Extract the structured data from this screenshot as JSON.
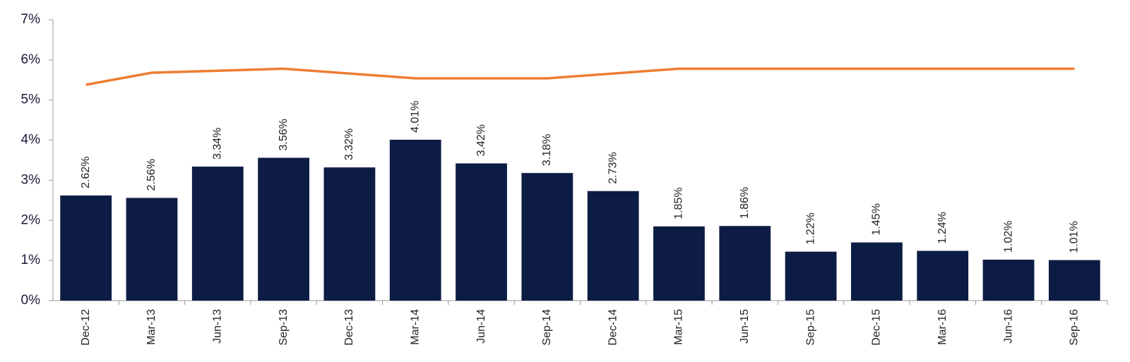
{
  "chart_data": {
    "type": "bar",
    "categories": [
      "Dec-12",
      "Mar-13",
      "Jun-13",
      "Sep-13",
      "Dec-13",
      "Mar-14",
      "Jun-14",
      "Sep-14",
      "Dec-14",
      "Mar-15",
      "Jun-15",
      "Sep-15",
      "Dec-15",
      "Mar-16",
      "Jun-16",
      "Sep-16"
    ],
    "series": [
      {
        "type": "bar",
        "color": "#0c1c44",
        "values": [
          2.62,
          2.56,
          3.34,
          3.56,
          3.32,
          4.01,
          3.42,
          3.18,
          2.73,
          1.85,
          1.86,
          1.22,
          1.45,
          1.24,
          1.02,
          1.01
        ],
        "value_labels": [
          "2.62%",
          "2.56%",
          "3.34%",
          "3.56%",
          "3.32%",
          "4.01%",
          "3.42%",
          "3.18%",
          "2.73%",
          "1.85%",
          "1.86%",
          "1.22%",
          "1.45%",
          "1.24%",
          "1.02%",
          "1.01%"
        ]
      },
      {
        "type": "line",
        "color": "#ed7d31",
        "values": [
          5.38,
          5.68,
          5.73,
          5.78,
          5.66,
          5.54,
          5.54,
          5.54,
          5.66,
          5.78,
          5.78,
          5.78,
          5.78,
          5.78,
          5.78,
          5.78
        ]
      }
    ],
    "ylim": [
      0,
      7
    ],
    "yticks": [
      {
        "value": 0,
        "label": "0%"
      },
      {
        "value": 1,
        "label": "1%"
      },
      {
        "value": 2,
        "label": "2%"
      },
      {
        "value": 3,
        "label": "3%"
      },
      {
        "value": 4,
        "label": "4%"
      },
      {
        "value": 5,
        "label": "5%"
      },
      {
        "value": 6,
        "label": "6%"
      },
      {
        "value": 7,
        "label": "7%"
      }
    ]
  }
}
